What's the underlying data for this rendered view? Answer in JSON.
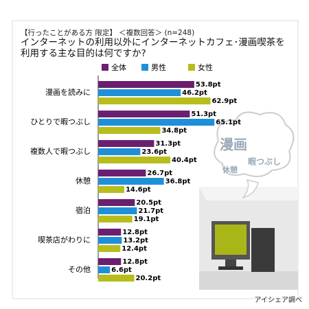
{
  "chart_data": {
    "type": "hbar",
    "subtitle": "【行ったことがある方 限定】 ＜複数回答＞ (n=248)",
    "title": "インターネットの利用以外にインターネットカフェ･漫画喫茶を利用する主な目的は何ですか?",
    "categories": [
      "漫画を読みに",
      "ひとりで暇つぶし",
      "複数人で暇つぶし",
      "休憩",
      "宿泊",
      "喫茶店がわりに",
      "その他"
    ],
    "series": [
      {
        "name": "全体",
        "color": "#6b1f70",
        "values": [
          53.8,
          51.3,
          31.3,
          26.7,
          20.5,
          12.8,
          12.8
        ],
        "value_labels": [
          "53.8pt",
          "51.3pt",
          "31.3pt",
          "26.7pt",
          "20.5pt",
          "12.8pt",
          "12.8pt"
        ]
      },
      {
        "name": "男性",
        "color": "#1f90d8",
        "values": [
          46.2,
          65.1,
          23.6,
          36.8,
          21.7,
          13.2,
          6.6
        ],
        "value_labels": [
          "46.2pt",
          "65.1pt",
          "23.6pt",
          "36.8pt",
          "21.7pt",
          "13.2pt",
          "6.6pt"
        ]
      },
      {
        "name": "女性",
        "color": "#b7bd1c",
        "values": [
          62.9,
          34.8,
          40.4,
          14.6,
          19.1,
          12.4,
          20.2
        ],
        "value_labels": [
          "62.9pt",
          "34.8pt",
          "40.4pt",
          "14.6pt",
          "19.1pt",
          "12.4pt",
          "20.2pt"
        ]
      }
    ],
    "illustration_texts": [
      "漫画",
      "暇つぶし",
      "休憩"
    ],
    "source": "アイシェア調べ"
  }
}
